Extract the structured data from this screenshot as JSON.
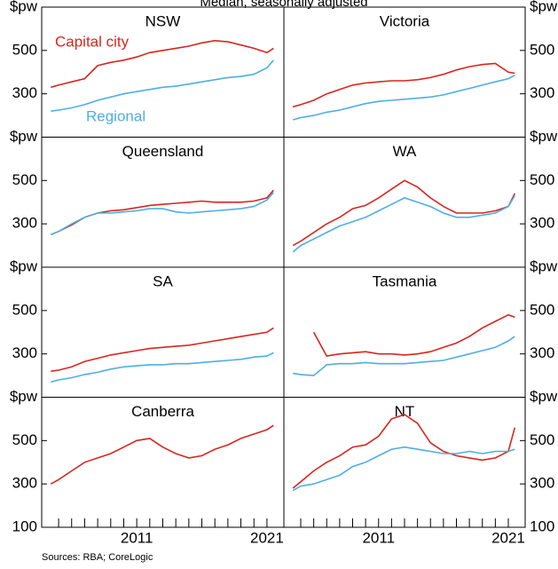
{
  "sources": "Sources:   RBA; CoreLogic",
  "chart_data": [
    {
      "type": "line",
      "subtitle": "Median, seasonally adjusted",
      "title": "NSW",
      "x": [
        2004.4,
        2005,
        2006,
        2007,
        2008,
        2009,
        2010,
        2011,
        2012,
        2013,
        2014,
        2015,
        2016,
        2017,
        2018,
        2019,
        2020,
        2021,
        2021.5
      ],
      "xlim": [
        2003.7,
        2022.3
      ],
      "ylim": [
        100,
        700
      ],
      "yticks": [
        {
          "value": 700,
          "label": "$pw"
        },
        500,
        300
      ],
      "series": [
        {
          "name": "Capital city",
          "color": "#d7261e",
          "values": [
            330,
            340,
            355,
            370,
            430,
            445,
            455,
            470,
            490,
            500,
            510,
            520,
            535,
            545,
            540,
            525,
            510,
            490,
            510
          ]
        },
        {
          "name": "Regional",
          "color": "#4eaee3",
          "values": [
            220,
            225,
            235,
            250,
            270,
            285,
            300,
            310,
            320,
            330,
            335,
            345,
            355,
            365,
            375,
            380,
            390,
            420,
            455
          ]
        }
      ]
    },
    {
      "type": "line",
      "title": "Victoria",
      "x": [
        2004.4,
        2005,
        2006,
        2007,
        2008,
        2009,
        2010,
        2011,
        2012,
        2013,
        2014,
        2015,
        2016,
        2017,
        2018,
        2019,
        2020,
        2021,
        2021.5
      ],
      "xlim": [
        2003.7,
        2022.3
      ],
      "ylim": [
        100,
        700
      ],
      "yticks": [
        {
          "value": 700,
          "label": "$pw"
        },
        500,
        300
      ],
      "series": [
        {
          "color": "#d7261e",
          "values": [
            240,
            250,
            270,
            300,
            320,
            340,
            350,
            355,
            360,
            360,
            365,
            375,
            390,
            410,
            425,
            435,
            440,
            400,
            395
          ]
        },
        {
          "color": "#4eaee3",
          "values": [
            180,
            190,
            200,
            215,
            225,
            240,
            255,
            265,
            270,
            275,
            280,
            285,
            295,
            310,
            325,
            340,
            355,
            370,
            385
          ]
        }
      ]
    },
    {
      "type": "line",
      "title": "Queensland",
      "x": [
        2004.4,
        2005,
        2006,
        2007,
        2008,
        2009,
        2010,
        2011,
        2012,
        2013,
        2014,
        2015,
        2016,
        2017,
        2018,
        2019,
        2020,
        2021,
        2021.5
      ],
      "xlim": [
        2003.7,
        2022.3
      ],
      "ylim": [
        100,
        700
      ],
      "yticks": [
        {
          "value": 700,
          "label": "$pw"
        },
        500,
        300
      ],
      "series": [
        {
          "color": "#d7261e",
          "values": [
            250,
            265,
            295,
            330,
            350,
            360,
            365,
            375,
            385,
            390,
            395,
            400,
            405,
            400,
            400,
            400,
            405,
            420,
            455
          ]
        },
        {
          "color": "#4eaee3",
          "values": [
            250,
            265,
            300,
            330,
            350,
            350,
            355,
            360,
            370,
            370,
            355,
            350,
            355,
            360,
            365,
            370,
            380,
            410,
            445
          ]
        }
      ]
    },
    {
      "type": "line",
      "title": "WA",
      "x": [
        2004.4,
        2005,
        2006,
        2007,
        2008,
        2009,
        2010,
        2011,
        2012,
        2013,
        2014,
        2015,
        2016,
        2017,
        2018,
        2019,
        2020,
        2021,
        2021.5
      ],
      "xlim": [
        2003.7,
        2022.3
      ],
      "ylim": [
        100,
        700
      ],
      "yticks": [
        {
          "value": 700,
          "label": "$pw"
        },
        500,
        300
      ],
      "series": [
        {
          "color": "#d7261e",
          "values": [
            200,
            220,
            260,
            300,
            330,
            370,
            385,
            420,
            460,
            500,
            470,
            420,
            380,
            350,
            350,
            350,
            360,
            380,
            440
          ]
        },
        {
          "color": "#4eaee3",
          "values": [
            170,
            200,
            230,
            260,
            290,
            310,
            330,
            360,
            390,
            420,
            400,
            380,
            350,
            330,
            330,
            340,
            350,
            380,
            430
          ]
        }
      ]
    },
    {
      "type": "line",
      "title": "SA",
      "x": [
        2004.4,
        2005,
        2006,
        2007,
        2008,
        2009,
        2010,
        2011,
        2012,
        2013,
        2014,
        2015,
        2016,
        2017,
        2018,
        2019,
        2020,
        2021,
        2021.5
      ],
      "xlim": [
        2003.7,
        2022.3
      ],
      "ylim": [
        100,
        700
      ],
      "yticks": [
        {
          "value": 700,
          "label": "$pw"
        },
        500,
        300
      ],
      "series": [
        {
          "color": "#d7261e",
          "values": [
            220,
            225,
            240,
            265,
            280,
            295,
            305,
            315,
            325,
            330,
            335,
            340,
            350,
            360,
            370,
            380,
            390,
            400,
            420
          ]
        },
        {
          "color": "#4eaee3",
          "values": [
            170,
            180,
            190,
            205,
            215,
            230,
            240,
            245,
            250,
            250,
            255,
            255,
            260,
            265,
            270,
            275,
            285,
            290,
            305
          ]
        }
      ]
    },
    {
      "type": "line",
      "title": "Tasmania",
      "x": [
        2004.4,
        2005,
        2006,
        2007,
        2008,
        2009,
        2010,
        2011,
        2012,
        2013,
        2014,
        2015,
        2016,
        2017,
        2018,
        2019,
        2020,
        2021,
        2021.5
      ],
      "xlim": [
        2003.7,
        2022.3
      ],
      "ylim": [
        100,
        700
      ],
      "yticks": [
        {
          "value": 700,
          "label": "$pw"
        },
        500,
        300
      ],
      "series": [
        {
          "color": "#d7261e",
          "values": [
            null,
            null,
            400,
            290,
            300,
            305,
            310,
            300,
            300,
            295,
            300,
            310,
            330,
            350,
            380,
            420,
            450,
            480,
            470
          ]
        },
        {
          "color": "#4eaee3",
          "values": [
            210,
            205,
            200,
            250,
            255,
            255,
            260,
            255,
            255,
            255,
            260,
            265,
            270,
            285,
            300,
            315,
            330,
            360,
            380
          ]
        }
      ]
    },
    {
      "type": "line",
      "title": "Canberra",
      "x": [
        2004.4,
        2005,
        2006,
        2007,
        2008,
        2009,
        2010,
        2011,
        2012,
        2013,
        2014,
        2015,
        2016,
        2017,
        2018,
        2019,
        2020,
        2021,
        2021.5
      ],
      "xlim": [
        2003.7,
        2022.3
      ],
      "ylim": [
        100,
        700
      ],
      "yticks": [
        {
          "value": 700,
          "label": "$pw"
        },
        500,
        300,
        100
      ],
      "xticks": [
        2011,
        2021
      ],
      "xminorticks": [
        2005,
        2006,
        2007,
        2008,
        2009,
        2010,
        2011,
        2012,
        2013,
        2014,
        2015,
        2016,
        2017,
        2018,
        2019,
        2020,
        2021
      ],
      "series": [
        {
          "color": "#d7261e",
          "values": [
            300,
            320,
            360,
            400,
            420,
            440,
            470,
            500,
            510,
            470,
            440,
            420,
            430,
            460,
            480,
            510,
            530,
            550,
            570
          ]
        }
      ]
    },
    {
      "type": "line",
      "title": "NT",
      "x": [
        2004.4,
        2005,
        2006,
        2007,
        2008,
        2009,
        2010,
        2011,
        2012,
        2013,
        2014,
        2015,
        2016,
        2017,
        2018,
        2019,
        2020,
        2021,
        2021.5
      ],
      "xlim": [
        2003.7,
        2022.3
      ],
      "ylim": [
        100,
        700
      ],
      "yticks": [
        {
          "value": 700,
          "label": "$pw"
        },
        500,
        300,
        100
      ],
      "xticks": [
        2011,
        2021
      ],
      "xminorticks": [
        2005,
        2006,
        2007,
        2008,
        2009,
        2010,
        2011,
        2012,
        2013,
        2014,
        2015,
        2016,
        2017,
        2018,
        2019,
        2020,
        2021
      ],
      "series": [
        {
          "color": "#d7261e",
          "values": [
            280,
            310,
            360,
            400,
            430,
            470,
            480,
            520,
            600,
            620,
            580,
            490,
            450,
            430,
            420,
            410,
            420,
            450,
            560
          ]
        },
        {
          "color": "#4eaee3",
          "values": [
            270,
            290,
            300,
            320,
            340,
            380,
            400,
            430,
            460,
            470,
            460,
            450,
            440,
            440,
            450,
            440,
            450,
            450,
            460
          ]
        }
      ]
    }
  ]
}
